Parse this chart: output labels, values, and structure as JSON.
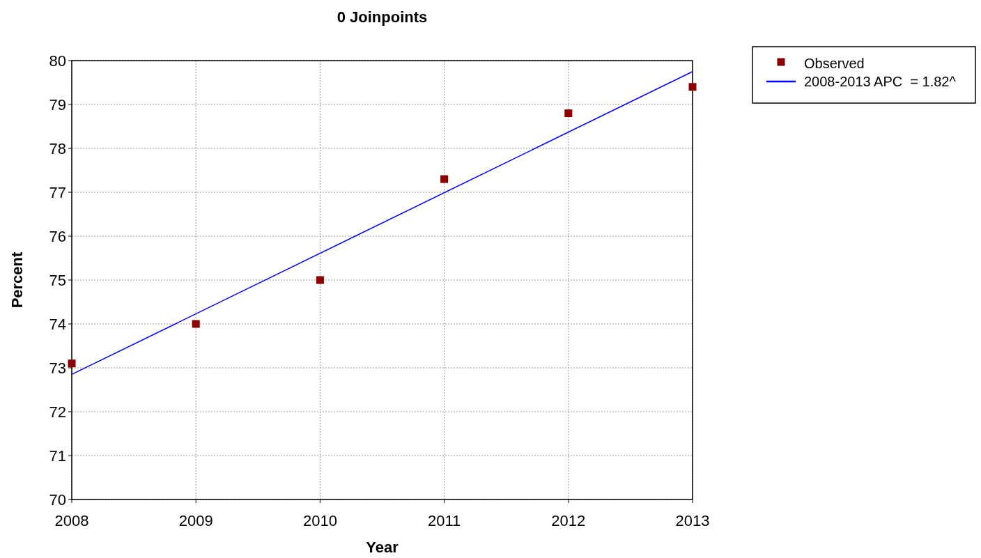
{
  "chart_data": {
    "type": "scatter",
    "title": "0 Joinpoints",
    "xlabel": "Year",
    "ylabel": "Percent",
    "xlim": [
      2008,
      2013
    ],
    "xticks": [
      2008,
      2009,
      2010,
      2011,
      2012,
      2013
    ],
    "ylim": [
      70,
      80
    ],
    "yticks": [
      70,
      71,
      72,
      73,
      74,
      75,
      76,
      77,
      78,
      79,
      80
    ],
    "grid": true,
    "legend": "top right",
    "series": [
      {
        "name": "Observed",
        "type": "scatter",
        "marker": "square",
        "color": "#8b0000",
        "x": [
          2008,
          2009,
          2010,
          2011,
          2012,
          2013
        ],
        "values": [
          73.1,
          74.0,
          75.0,
          77.3,
          78.8,
          79.4
        ]
      },
      {
        "name": "2008-2013 APC  = 1.82^",
        "type": "line",
        "marker": "none",
        "line_style": "solid",
        "color": "#0000ff",
        "x": [
          2008,
          2013
        ],
        "values": [
          72.85,
          79.75
        ]
      }
    ]
  }
}
